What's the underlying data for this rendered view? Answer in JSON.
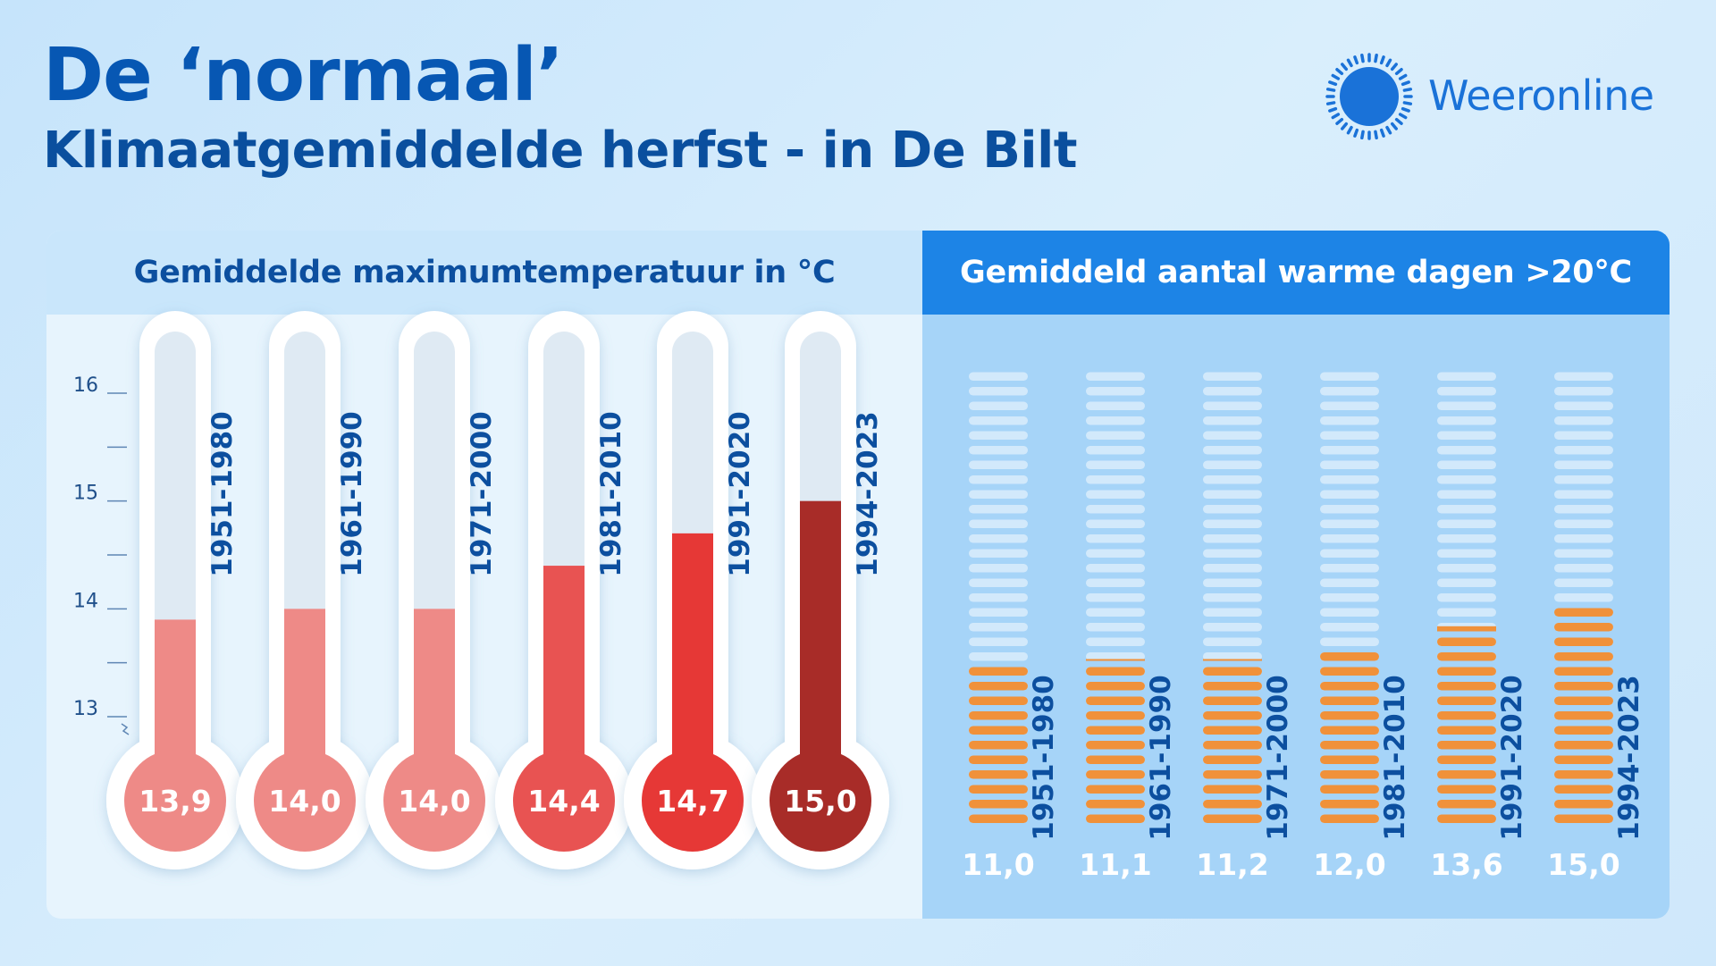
{
  "header": {
    "title": "De ‘normaal’",
    "subtitle": "Klimaatgemiddelde herfst - in De Bilt",
    "brand": "Weeronline",
    "logo_icon": "sun-icon"
  },
  "chart_data": [
    {
      "type": "bar",
      "title": "Gemiddelde maximumtemperatuur in °C",
      "categories": [
        "1951-1980",
        "1961-1990",
        "1971-2000",
        "1981-2010",
        "1991-2020",
        "1994-2023"
      ],
      "values": [
        13.9,
        14.0,
        14.0,
        14.4,
        14.7,
        15.0
      ],
      "value_labels": [
        "13,9",
        "14,0",
        "14,0",
        "14,4",
        "14,7",
        "15,0"
      ],
      "ylim": [
        13,
        16
      ],
      "yticks": [
        "13",
        "14",
        "15",
        "16"
      ],
      "colors": [
        "#ee8a87",
        "#ee8a87",
        "#ee8a87",
        "#e85352",
        "#e63836",
        "#a82c28"
      ],
      "legend": "none",
      "grid": false
    },
    {
      "type": "bar",
      "title": "Gemiddeld aantal warme dagen >20°C",
      "categories": [
        "1951-1980",
        "1961-1990",
        "1971-2000",
        "1981-2010",
        "1991-2020",
        "1994-2023"
      ],
      "values": [
        11.0,
        11.1,
        11.2,
        12.0,
        13.6,
        15.0
      ],
      "value_labels": [
        "11,0",
        "11,1",
        "11,2",
        "12,0",
        "13,6",
        "15,0"
      ],
      "ylim": [
        0,
        31
      ],
      "color": "#f0913a",
      "legend": "none",
      "grid": false
    }
  ]
}
